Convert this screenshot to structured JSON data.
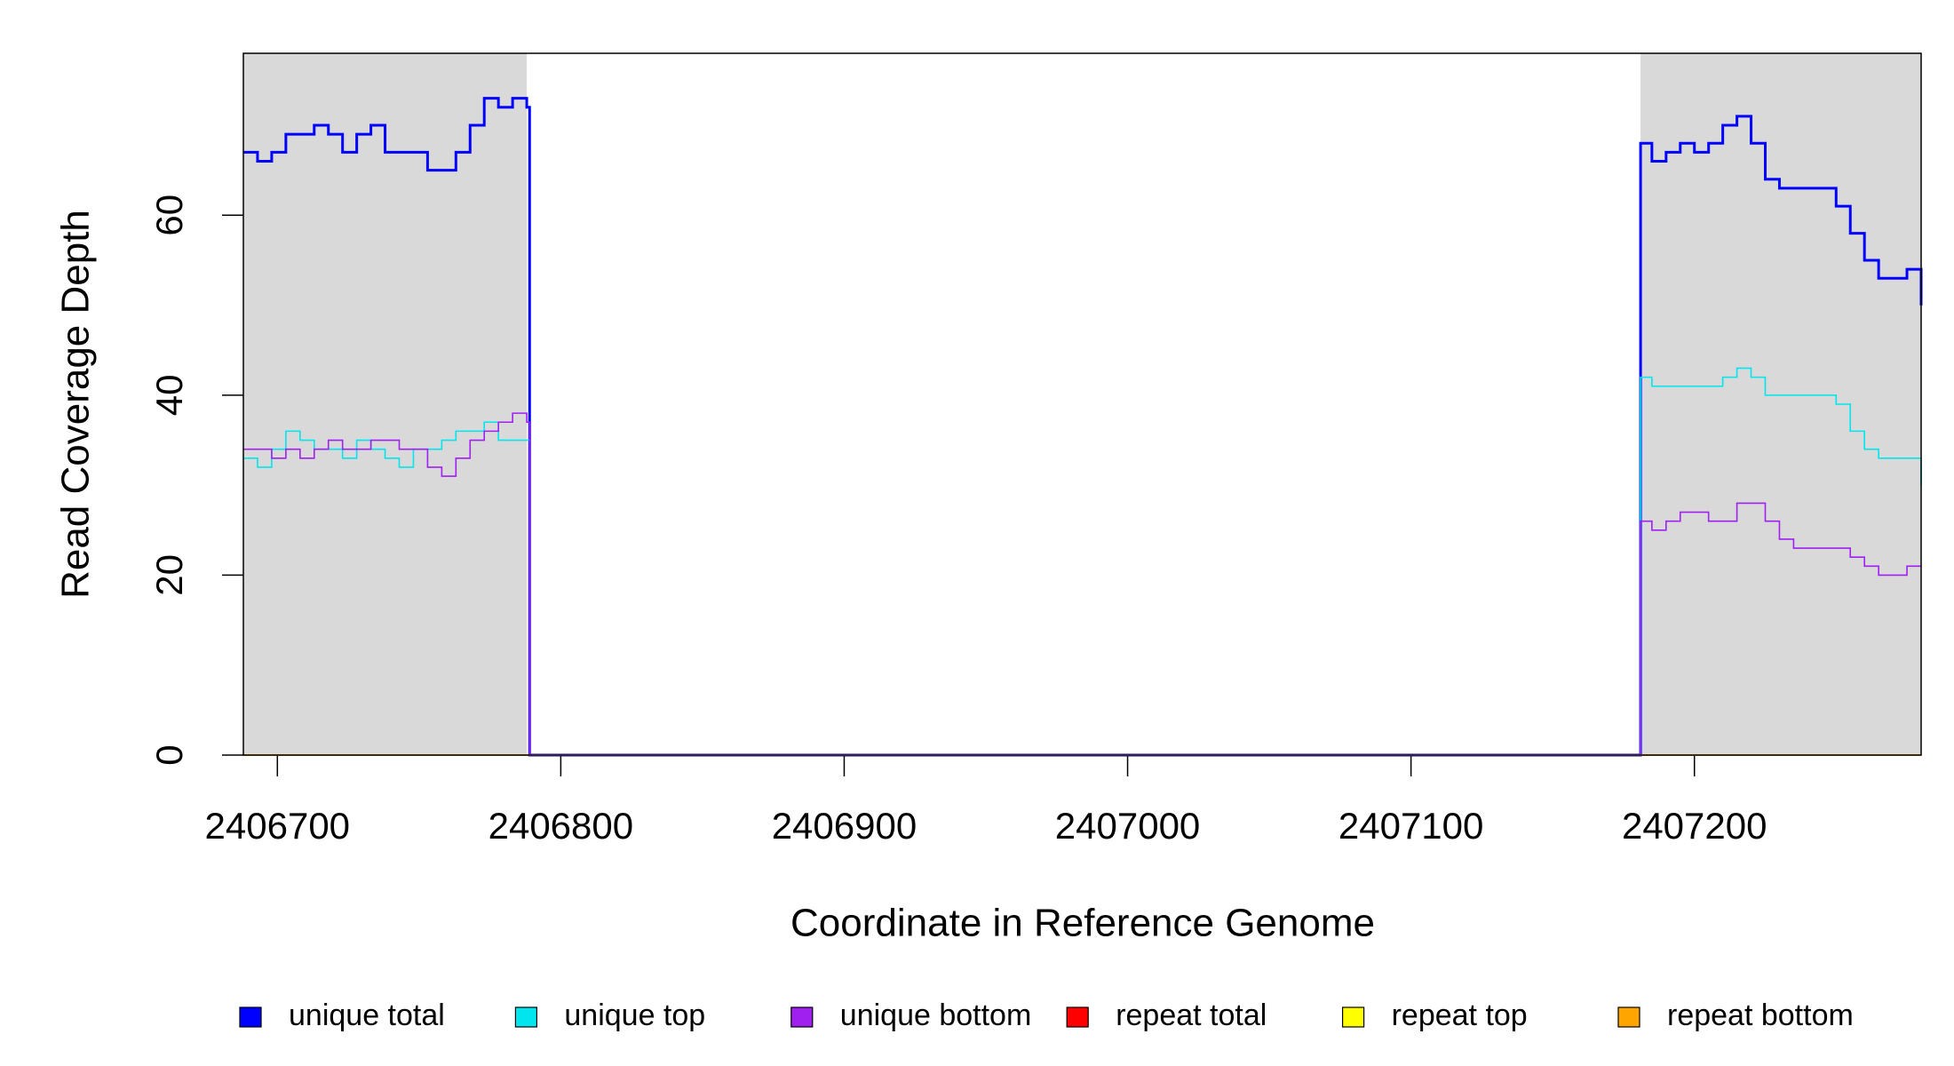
{
  "chart_data": {
    "type": "line",
    "step": true,
    "x_label": "Coordinate in Reference Genome",
    "y_label": "Read Coverage Depth",
    "xlim": [
      2406688,
      2407280
    ],
    "ylim": [
      0,
      78
    ],
    "xticks": [
      2406700,
      2406800,
      2406900,
      2407000,
      2407100,
      2407200
    ],
    "yticks": [
      0,
      20,
      40,
      60
    ],
    "shaded_regions": [
      [
        2406688,
        2406788
      ],
      [
        2407181,
        2407280
      ]
    ],
    "shade_color": "#d9d9d9",
    "legend": "bottom",
    "x": [
      2406688,
      2406693,
      2406698,
      2406703,
      2406708,
      2406713,
      2406718,
      2406723,
      2406728,
      2406733,
      2406738,
      2406743,
      2406748,
      2406753,
      2406758,
      2406763,
      2406768,
      2406773,
      2406778,
      2406783,
      2406788,
      2406789,
      2407180,
      2407181,
      2407185,
      2407190,
      2407195,
      2407200,
      2407205,
      2407210,
      2407215,
      2407220,
      2407225,
      2407230,
      2407235,
      2407240,
      2407245,
      2407250,
      2407255,
      2407260,
      2407265,
      2407270,
      2407275,
      2407280
    ],
    "series": [
      {
        "name": "unique total",
        "color": "#0000ff",
        "width": 3,
        "values": [
          67,
          66,
          67,
          69,
          69,
          70,
          69,
          67,
          69,
          70,
          67,
          67,
          67,
          65,
          65,
          67,
          70,
          73,
          72,
          73,
          72,
          0,
          0,
          68,
          66,
          67,
          68,
          67,
          68,
          70,
          71,
          68,
          64,
          63,
          63,
          63,
          63,
          61,
          58,
          55,
          53,
          53,
          54,
          50
        ]
      },
      {
        "name": "unique top",
        "color": "#00e5ee",
        "width": 1.6,
        "values": [
          33,
          32,
          34,
          36,
          35,
          34,
          34,
          33,
          35,
          34,
          33,
          32,
          34,
          34,
          35,
          36,
          36,
          37,
          35,
          35,
          35,
          0,
          0,
          42,
          41,
          41,
          41,
          41,
          41,
          42,
          43,
          42,
          40,
          40,
          40,
          40,
          40,
          39,
          36,
          34,
          33,
          33,
          33,
          30
        ]
      },
      {
        "name": "unique bottom",
        "color": "#a020f0",
        "width": 1.6,
        "values": [
          34,
          34,
          33,
          34,
          33,
          34,
          35,
          34,
          34,
          35,
          35,
          34,
          34,
          32,
          31,
          33,
          35,
          36,
          37,
          38,
          37,
          0,
          0,
          26,
          25,
          26,
          27,
          27,
          26,
          26,
          28,
          28,
          26,
          24,
          23,
          23,
          23,
          23,
          22,
          21,
          20,
          20,
          21,
          21
        ]
      },
      {
        "name": "repeat total",
        "color": "#ff0000",
        "width": 1.6,
        "values": [
          0,
          0,
          0,
          0,
          0,
          0,
          0,
          0,
          0,
          0,
          0,
          0,
          0,
          0,
          0,
          0,
          0,
          0,
          0,
          0,
          0,
          0,
          0,
          0,
          0,
          0,
          0,
          0,
          0,
          0,
          0,
          0,
          0,
          0,
          0,
          0,
          0,
          0,
          0,
          0,
          0,
          0,
          0,
          0
        ]
      },
      {
        "name": "repeat top",
        "color": "#ffff00",
        "width": 1.6,
        "values": [
          0,
          0,
          0,
          0,
          0,
          0,
          0,
          0,
          0,
          0,
          0,
          0,
          0,
          0,
          0,
          0,
          0,
          0,
          0,
          0,
          0,
          0,
          0,
          0,
          0,
          0,
          0,
          0,
          0,
          0,
          0,
          0,
          0,
          0,
          0,
          0,
          0,
          0,
          0,
          0,
          0,
          0,
          0,
          0
        ]
      },
      {
        "name": "repeat bottom",
        "color": "#ffa500",
        "width": 1.6,
        "values": [
          0,
          0,
          0,
          0,
          0,
          0,
          0,
          0,
          0,
          0,
          0,
          0,
          0,
          0,
          0,
          0,
          0,
          0,
          0,
          0,
          0,
          0,
          0,
          0,
          0,
          0,
          0,
          0,
          0,
          0,
          0,
          0,
          0,
          0,
          0,
          0,
          0,
          0,
          0,
          0,
          0,
          0,
          0,
          0
        ]
      }
    ]
  }
}
